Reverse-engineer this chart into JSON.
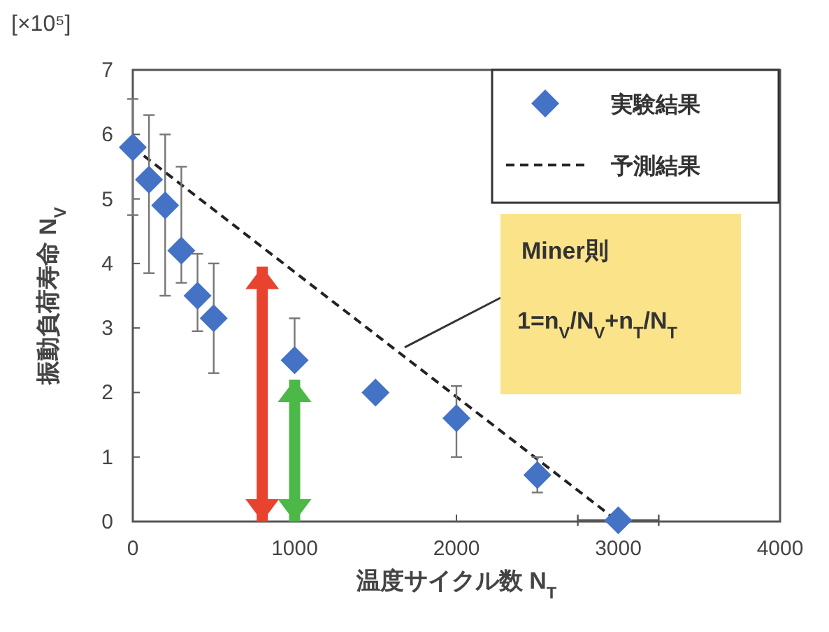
{
  "chart_data": {
    "type": "scatter",
    "xlabel": "温度サイクル数 N$_{T}$",
    "ylabel": "振動負荷寿命 N$_{V}$",
    "xlim": [
      0,
      4000
    ],
    "xticks": [
      0,
      1000,
      2000,
      3000,
      4000
    ],
    "ylim": [
      0,
      7
    ],
    "yticks": [
      0,
      1,
      2,
      3,
      4,
      5,
      6,
      7
    ],
    "grid": false,
    "legend": "top right",
    "series": [
      {
        "name": "実験結果",
        "type": "scatter",
        "marker": "diamond",
        "color": "#4472c4",
        "x": [
          0,
          100,
          200,
          300,
          400,
          500,
          1000,
          1500,
          2000,
          2500,
          3000
        ],
        "values": [
          5.8,
          5.3,
          4.9,
          4.2,
          3.5,
          3.15,
          2.5,
          2.0,
          1.6,
          0.72,
          0.02
        ],
        "errors": [
          [
            4.75,
            6.55
          ],
          [
            3.85,
            6.3
          ],
          [
            3.5,
            6.0
          ],
          [
            3.7,
            5.5
          ],
          [
            2.95,
            4.15
          ],
          [
            2.3,
            4.0
          ],
          [
            2.5,
            3.15
          ],
          null,
          [
            1.0,
            2.1
          ],
          [
            0.45,
            1.0
          ],
          null
        ],
        "xerrors": [
          null,
          null,
          null,
          null,
          null,
          null,
          null,
          null,
          null,
          null,
          [
            2750,
            3250
          ]
        ]
      },
      {
        "name": "予測結果",
        "type": "line",
        "line_style": "dashed",
        "color": "#222222",
        "x": [
          0,
          3000
        ],
        "values": [
          5.8,
          0
        ]
      },
      {
        "type": "line",
        "color": "#e8432e",
        "x": [
          800,
          800
        ],
        "values": [
          0,
          3.95
        ]
      },
      {
        "type": "line",
        "color": "#4cb848",
        "x": [
          1000,
          1000
        ],
        "values": [
          0,
          2.2
        ]
      }
    ],
    "annotations": [
      "[×10⁵]",
      "Miner則",
      {
        "text": "1=n$_{V}$/N$_{V}$+n$_{T}$/N$_{T}$",
        "x": 1680,
        "y": 2.7
      }
    ]
  }
}
